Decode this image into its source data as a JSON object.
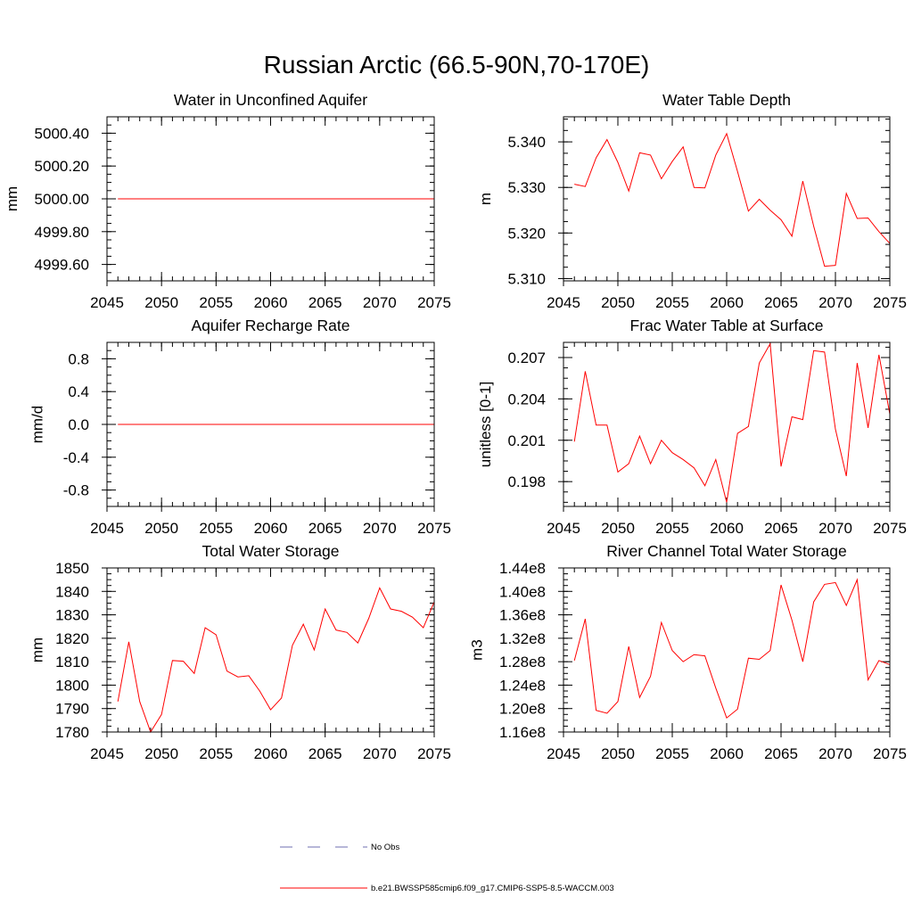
{
  "figure": {
    "title": "Russian Arctic (66.5-90N,70-170E)"
  },
  "chart_data": [
    {
      "type": "line",
      "title": "Water in Unconfined Aquifer",
      "xlabel": "",
      "ylabel": "mm",
      "xlim": [
        2045,
        2075
      ],
      "ylim": [
        4999.5,
        5000.5
      ],
      "xticks": [
        2045,
        2050,
        2055,
        2060,
        2065,
        2070,
        2075
      ],
      "xtick_labels": [
        "2045",
        "2050",
        "2055",
        "2060",
        "2065",
        "2070",
        "2075"
      ],
      "yticks": [
        4999.6,
        4999.8,
        5000.0,
        5000.2,
        5000.4
      ],
      "ytick_labels": [
        "4999.60",
        "4999.80",
        "5000.00",
        "5000.20",
        "5000.40"
      ],
      "x": [
        2046,
        2047,
        2048,
        2049,
        2050,
        2051,
        2052,
        2053,
        2054,
        2055,
        2056,
        2057,
        2058,
        2059,
        2060,
        2061,
        2062,
        2063,
        2064,
        2065,
        2066,
        2067,
        2068,
        2069,
        2070,
        2071,
        2072,
        2073,
        2074,
        2075
      ],
      "series": [
        {
          "values": [
            5000,
            5000,
            5000,
            5000,
            5000,
            5000,
            5000,
            5000,
            5000,
            5000,
            5000,
            5000,
            5000,
            5000,
            5000,
            5000,
            5000,
            5000,
            5000,
            5000,
            5000,
            5000,
            5000,
            5000,
            5000,
            5000,
            5000,
            5000,
            5000,
            5000
          ]
        }
      ]
    },
    {
      "type": "line",
      "title": "Water Table Depth",
      "xlabel": "",
      "ylabel": "m",
      "xlim": [
        2045,
        2075
      ],
      "ylim": [
        5.3095,
        5.3455
      ],
      "xticks": [
        2045,
        2050,
        2055,
        2060,
        2065,
        2070,
        2075
      ],
      "xtick_labels": [
        "2045",
        "2050",
        "2055",
        "2060",
        "2065",
        "2070",
        "2075"
      ],
      "yticks": [
        5.31,
        5.32,
        5.33,
        5.34
      ],
      "ytick_labels": [
        "5.310",
        "5.320",
        "5.330",
        "5.340"
      ],
      "x": [
        2046,
        2047,
        2048,
        2049,
        2050,
        2051,
        2052,
        2053,
        2054,
        2055,
        2056,
        2057,
        2058,
        2059,
        2060,
        2061,
        2062,
        2063,
        2064,
        2065,
        2066,
        2067,
        2068,
        2069,
        2070,
        2071,
        2072,
        2073,
        2074,
        2075
      ],
      "series": [
        {
          "values": [
            5.3307,
            5.3302,
            5.3365,
            5.3405,
            5.3355,
            5.3292,
            5.3376,
            5.3371,
            5.3319,
            5.3357,
            5.3389,
            5.33,
            5.3299,
            5.3371,
            5.3418,
            5.3335,
            5.3248,
            5.3274,
            5.325,
            5.3229,
            5.3193,
            5.3314,
            5.3215,
            5.3127,
            5.3129,
            5.3287,
            5.3232,
            5.3233,
            5.3203,
            5.3177
          ]
        }
      ]
    },
    {
      "type": "line",
      "title": "Aquifer Recharge Rate",
      "xlabel": "",
      "ylabel": "mm/d",
      "xlim": [
        2045,
        2075
      ],
      "ylim": [
        -1.0,
        1.0
      ],
      "xticks": [
        2045,
        2050,
        2055,
        2060,
        2065,
        2070,
        2075
      ],
      "xtick_labels": [
        "2045",
        "2050",
        "2055",
        "2060",
        "2065",
        "2070",
        "2075"
      ],
      "yticks": [
        -0.8,
        -0.4,
        0.0,
        0.4,
        0.8
      ],
      "ytick_labels": [
        "-0.8",
        "-0.4",
        "0.0",
        "0.4",
        "0.8"
      ],
      "x": [
        2046,
        2047,
        2048,
        2049,
        2050,
        2051,
        2052,
        2053,
        2054,
        2055,
        2056,
        2057,
        2058,
        2059,
        2060,
        2061,
        2062,
        2063,
        2064,
        2065,
        2066,
        2067,
        2068,
        2069,
        2070,
        2071,
        2072,
        2073,
        2074,
        2075
      ],
      "series": [
        {
          "values": [
            0,
            0,
            0,
            0,
            0,
            0,
            0,
            0,
            0,
            0,
            0,
            0,
            0,
            0,
            0,
            0,
            0,
            0,
            0,
            0,
            0,
            0,
            0,
            0,
            0,
            0,
            0,
            0,
            0,
            0
          ]
        }
      ]
    },
    {
      "type": "line",
      "title": "Frac Water Table at Surface",
      "xlabel": "",
      "ylabel": "unitless [0-1]",
      "xlim": [
        2045,
        2075
      ],
      "ylim": [
        0.1962,
        0.2081
      ],
      "xticks": [
        2045,
        2050,
        2055,
        2060,
        2065,
        2070,
        2075
      ],
      "xtick_labels": [
        "2045",
        "2050",
        "2055",
        "2060",
        "2065",
        "2070",
        "2075"
      ],
      "yticks": [
        0.198,
        0.201,
        0.204,
        0.207
      ],
      "ytick_labels": [
        "0.198",
        "0.201",
        "0.204",
        "0.207"
      ],
      "x": [
        2046,
        2047,
        2048,
        2049,
        2050,
        2051,
        2052,
        2053,
        2054,
        2055,
        2056,
        2057,
        2058,
        2059,
        2060,
        2061,
        2062,
        2063,
        2064,
        2065,
        2066,
        2067,
        2068,
        2069,
        2070,
        2071,
        2072,
        2073,
        2074,
        2075
      ],
      "series": [
        {
          "values": [
            0.2009,
            0.206,
            0.2021,
            0.2021,
            0.1987,
            0.1993,
            0.2013,
            0.1993,
            0.201,
            0.2001,
            0.1996,
            0.199,
            0.1977,
            0.1996,
            0.1965,
            0.2015,
            0.202,
            0.2066,
            0.208,
            0.1991,
            0.2027,
            0.2025,
            0.2075,
            0.2074,
            0.2018,
            0.1984,
            0.2066,
            0.2019,
            0.2072,
            0.2029
          ]
        }
      ]
    },
    {
      "type": "line",
      "title": "Total Water Storage",
      "xlabel": "",
      "ylabel": "mm",
      "xlim": [
        2045,
        2075
      ],
      "ylim": [
        1780,
        1850
      ],
      "xticks": [
        2045,
        2050,
        2055,
        2060,
        2065,
        2070,
        2075
      ],
      "xtick_labels": [
        "2045",
        "2050",
        "2055",
        "2060",
        "2065",
        "2070",
        "2075"
      ],
      "yticks": [
        1780,
        1790,
        1800,
        1810,
        1820,
        1830,
        1840,
        1850
      ],
      "ytick_labels": [
        "1780",
        "1790",
        "1800",
        "1810",
        "1820",
        "1830",
        "1840",
        "1850"
      ],
      "x": [
        2046,
        2047,
        2048,
        2049,
        2050,
        2051,
        2052,
        2053,
        2054,
        2055,
        2056,
        2057,
        2058,
        2059,
        2060,
        2061,
        2062,
        2063,
        2064,
        2065,
        2066,
        2067,
        2068,
        2069,
        2070,
        2071,
        2072,
        2073,
        2074,
        2075
      ],
      "series": [
        {
          "values": [
            1793,
            1818.5,
            1793,
            1780,
            1787.5,
            1810.5,
            1810.2,
            1805,
            1824.5,
            1821.5,
            1806,
            1803.5,
            1804,
            1797.5,
            1789.5,
            1794.5,
            1817,
            1826,
            1815,
            1832.5,
            1823.5,
            1822.5,
            1818,
            1828.5,
            1841.5,
            1832.5,
            1831.5,
            1829,
            1824.5,
            1835.5
          ]
        }
      ]
    },
    {
      "type": "line",
      "title": "River Channel Total Water Storage",
      "xlabel": "",
      "ylabel": "m3",
      "xlim": [
        2045,
        2075
      ],
      "ylim": [
        116000000,
        144000000
      ],
      "xticks": [
        2045,
        2050,
        2055,
        2060,
        2065,
        2070,
        2075
      ],
      "xtick_labels": [
        "2045",
        "2050",
        "2055",
        "2060",
        "2065",
        "2070",
        "2075"
      ],
      "yticks": [
        116000000,
        120000000,
        124000000,
        128000000,
        132000000,
        136000000,
        140000000,
        144000000
      ],
      "ytick_labels": [
        "1.16e8",
        "1.20e8",
        "1.24e8",
        "1.28e8",
        "1.32e8",
        "1.36e8",
        "1.40e8",
        "1.44e8"
      ],
      "x": [
        2046,
        2047,
        2048,
        2049,
        2050,
        2051,
        2052,
        2053,
        2054,
        2055,
        2056,
        2057,
        2058,
        2059,
        2060,
        2061,
        2062,
        2063,
        2064,
        2065,
        2066,
        2067,
        2068,
        2069,
        2070,
        2071,
        2072,
        2073,
        2074,
        2075
      ],
      "series": [
        {
          "values": [
            128200000,
            135300000,
            119700000,
            119200000,
            121200000,
            130600000,
            121900000,
            125500000,
            134700000,
            129900000,
            128000000,
            129200000,
            129000000,
            123500000,
            118400000,
            119900000,
            128600000,
            128400000,
            129900000,
            141100000,
            135100000,
            128000000,
            138200000,
            141200000,
            141500000,
            137600000,
            142000000,
            124900000,
            128200000,
            127500000
          ]
        }
      ]
    }
  ],
  "legend": {
    "items": [
      {
        "label": "No Obs",
        "color": "#6f6fb0",
        "dash": "dashed"
      },
      {
        "label": "b.e21.BWSSP585cmip6.f09_g17.CMIP6-SSP5-8.5-WACCM.003",
        "color": "#ff0000",
        "dash": "solid"
      }
    ]
  },
  "colors": {
    "data_line": "#ff0000",
    "axes": "#000000",
    "background": "#ffffff"
  }
}
